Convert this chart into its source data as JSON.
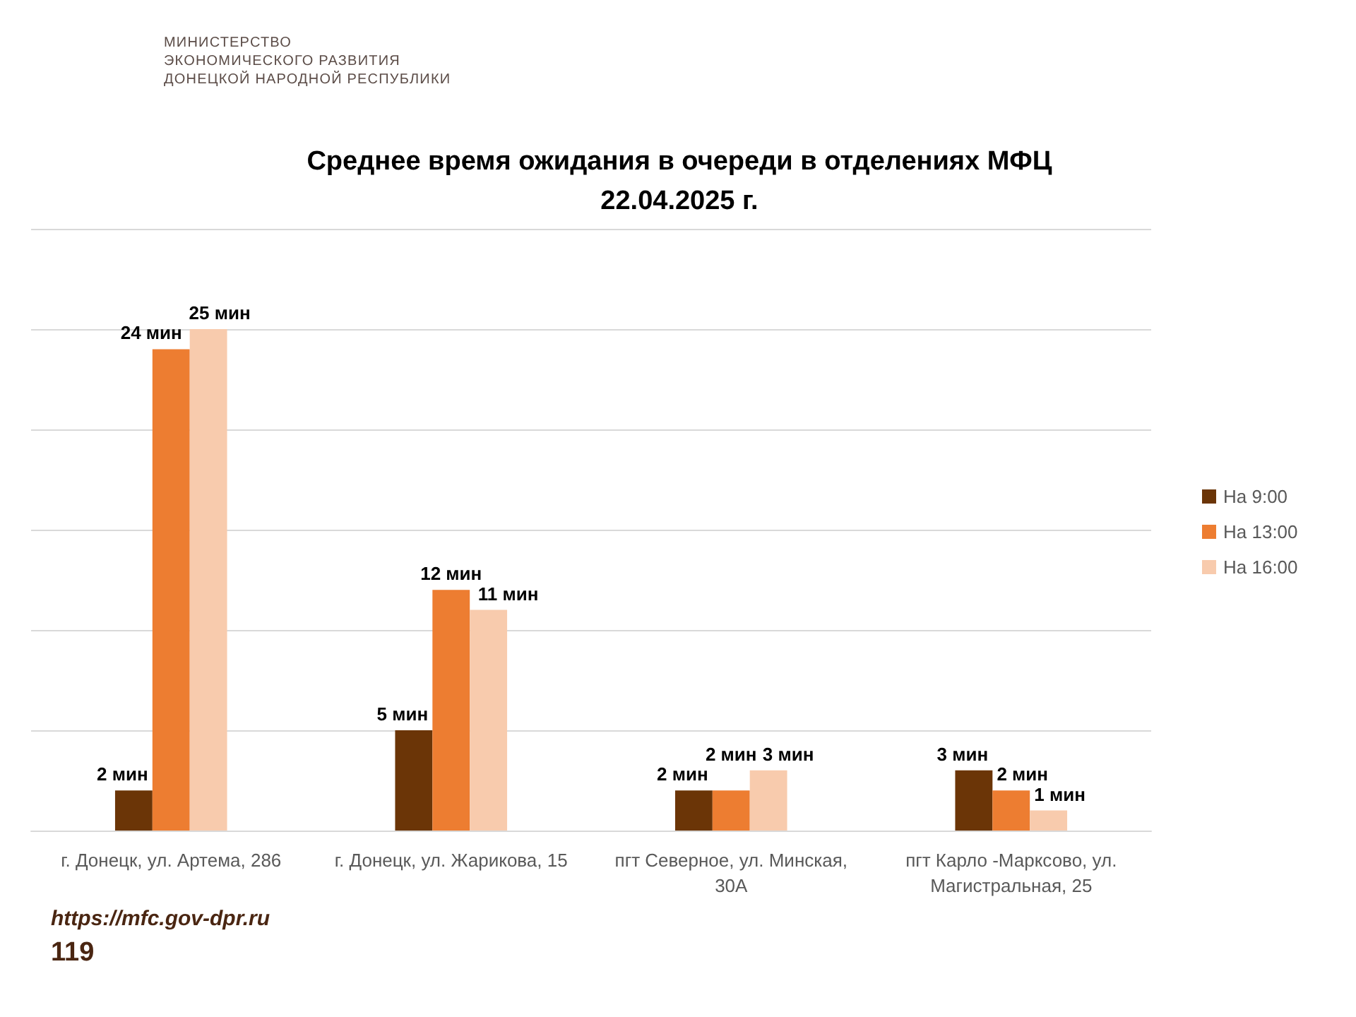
{
  "chart_data": {
    "type": "bar",
    "title": "Среднее время ожидания в очереди в отделениях МФЦ 22.04.2025 г.",
    "categories": [
      "г. Донецк, ул. Артема, 286",
      "г. Донецк, ул. Жарикова, 15",
      "пгт Северное, ул. Минская, 30А",
      "пгт Карло -Марксово, ул. Магистральная, 25"
    ],
    "series": [
      {
        "name": "На 9:00",
        "color": "#6b3507",
        "values": [
          2,
          5,
          2,
          3
        ],
        "value_labels": [
          "2 мин",
          "5 мин",
          "2 мин",
          "3 мин"
        ]
      },
      {
        "name": "На 13:00",
        "color": "#ed7d31",
        "values": [
          24,
          12,
          2,
          2
        ],
        "value_labels": [
          "24 мин",
          "12 мин",
          "2 мин",
          "2 мин"
        ]
      },
      {
        "name": "На 16:00",
        "color": "#f8cbad",
        "values": [
          25,
          11,
          3,
          1
        ],
        "value_labels": [
          "25 мин",
          "11 мин",
          "3 мин",
          "1 мин"
        ]
      }
    ],
    "ylim": [
      0,
      30
    ],
    "yticks": [
      {
        "value": 0,
        "label": null
      },
      {
        "value": 5,
        "label": null
      },
      {
        "value": 10,
        "label": null
      },
      {
        "value": 15,
        "label": null
      },
      {
        "value": 20,
        "label": null
      },
      {
        "value": 25,
        "label": null
      },
      {
        "value": 30,
        "label": null
      }
    ],
    "tick_labels": "x",
    "grid": "y",
    "legend": "right",
    "annotations": [
      "МИНИСТЕРСТВО\nЭКОНОМИЧЕСКОГО РАЗВИТИЯ\nДОНЕЦКОЙ НАРОДНОЙ РЕСПУБЛИКИ",
      "https://mfc.gov-dpr.ru",
      "119"
    ]
  }
}
